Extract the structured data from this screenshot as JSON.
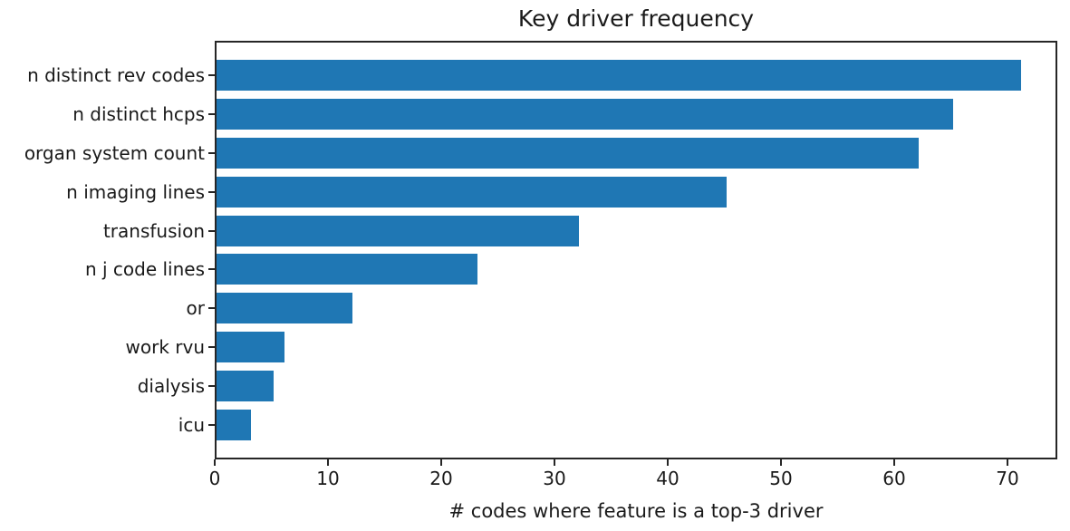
{
  "chart_data": {
    "type": "bar",
    "orientation": "horizontal",
    "title": "Key driver frequency",
    "xlabel": "# codes where feature is a top-3 driver",
    "ylabel": "",
    "categories": [
      "n distinct rev codes",
      "n distinct hcps",
      "organ system count",
      "n imaging lines",
      "transfusion",
      "n j code lines",
      "or",
      "work rvu",
      "dialysis",
      "icu"
    ],
    "values": [
      71,
      65,
      62,
      45,
      32,
      23,
      12,
      6,
      5,
      3
    ],
    "xticks": [
      0,
      10,
      20,
      30,
      40,
      50,
      60,
      70
    ],
    "xlim": [
      0,
      74.4
    ],
    "grid": false,
    "legend": null,
    "bar_color": "#1f77b4",
    "axis_color": "#262626",
    "text_color": "#1a1a1a"
  }
}
